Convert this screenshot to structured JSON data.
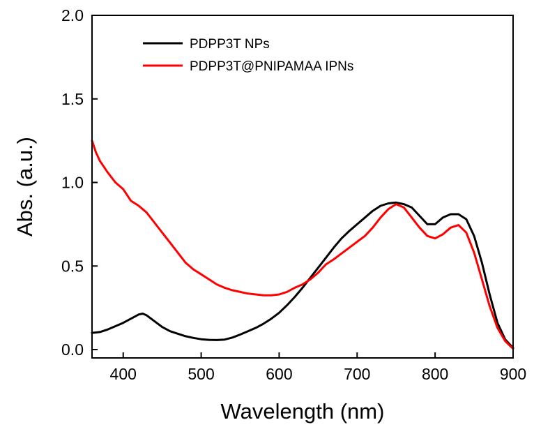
{
  "chart_data": {
    "type": "line",
    "title": "",
    "xlabel": "Wavelength (nm)",
    "ylabel": "Abs. (a.u.)",
    "xlim": [
      360,
      900
    ],
    "ylim": [
      -0.05,
      2.0
    ],
    "xticks": [
      400,
      500,
      600,
      700,
      800,
      900
    ],
    "yticks": [
      0.0,
      0.5,
      1.0,
      1.5,
      2.0
    ],
    "xtick_labels": [
      "400",
      "500",
      "600",
      "700",
      "800",
      "900"
    ],
    "ytick_labels": [
      "0.0",
      "0.5",
      "1.0",
      "1.5",
      "2.0"
    ],
    "grid": false,
    "legend_position": "top-left",
    "series": [
      {
        "name": "PDPP3T NPs",
        "color": "#000000",
        "points": [
          [
            360,
            0.1
          ],
          [
            370,
            0.105
          ],
          [
            380,
            0.12
          ],
          [
            390,
            0.14
          ],
          [
            400,
            0.16
          ],
          [
            410,
            0.185
          ],
          [
            420,
            0.21
          ],
          [
            425,
            0.215
          ],
          [
            430,
            0.205
          ],
          [
            440,
            0.17
          ],
          [
            450,
            0.135
          ],
          [
            460,
            0.11
          ],
          [
            470,
            0.095
          ],
          [
            480,
            0.08
          ],
          [
            490,
            0.07
          ],
          [
            500,
            0.062
          ],
          [
            510,
            0.058
          ],
          [
            520,
            0.057
          ],
          [
            530,
            0.06
          ],
          [
            540,
            0.072
          ],
          [
            550,
            0.09
          ],
          [
            560,
            0.11
          ],
          [
            570,
            0.13
          ],
          [
            580,
            0.155
          ],
          [
            590,
            0.185
          ],
          [
            600,
            0.22
          ],
          [
            610,
            0.265
          ],
          [
            620,
            0.315
          ],
          [
            630,
            0.37
          ],
          [
            640,
            0.43
          ],
          [
            650,
            0.49
          ],
          [
            660,
            0.55
          ],
          [
            670,
            0.61
          ],
          [
            680,
            0.665
          ],
          [
            690,
            0.71
          ],
          [
            700,
            0.75
          ],
          [
            710,
            0.79
          ],
          [
            720,
            0.83
          ],
          [
            730,
            0.86
          ],
          [
            740,
            0.875
          ],
          [
            750,
            0.88
          ],
          [
            760,
            0.87
          ],
          [
            770,
            0.85
          ],
          [
            780,
            0.8
          ],
          [
            790,
            0.75
          ],
          [
            800,
            0.75
          ],
          [
            810,
            0.79
          ],
          [
            820,
            0.81
          ],
          [
            830,
            0.81
          ],
          [
            840,
            0.78
          ],
          [
            850,
            0.68
          ],
          [
            860,
            0.52
          ],
          [
            870,
            0.33
          ],
          [
            880,
            0.16
          ],
          [
            890,
            0.06
          ],
          [
            900,
            0.01
          ]
        ]
      },
      {
        "name": "PDPP3T@PNIPAMAA IPNs",
        "color": "#ff0000",
        "points": [
          [
            360,
            1.25
          ],
          [
            365,
            1.18
          ],
          [
            370,
            1.13
          ],
          [
            380,
            1.06
          ],
          [
            390,
            1.0
          ],
          [
            400,
            0.96
          ],
          [
            410,
            0.89
          ],
          [
            420,
            0.86
          ],
          [
            425,
            0.84
          ],
          [
            430,
            0.82
          ],
          [
            440,
            0.76
          ],
          [
            450,
            0.7
          ],
          [
            460,
            0.64
          ],
          [
            470,
            0.58
          ],
          [
            480,
            0.52
          ],
          [
            490,
            0.48
          ],
          [
            500,
            0.45
          ],
          [
            510,
            0.42
          ],
          [
            520,
            0.39
          ],
          [
            530,
            0.37
          ],
          [
            540,
            0.355
          ],
          [
            550,
            0.345
          ],
          [
            560,
            0.335
          ],
          [
            570,
            0.33
          ],
          [
            580,
            0.325
          ],
          [
            590,
            0.325
          ],
          [
            600,
            0.33
          ],
          [
            610,
            0.345
          ],
          [
            620,
            0.37
          ],
          [
            630,
            0.39
          ],
          [
            640,
            0.42
          ],
          [
            650,
            0.46
          ],
          [
            660,
            0.51
          ],
          [
            670,
            0.54
          ],
          [
            680,
            0.575
          ],
          [
            690,
            0.61
          ],
          [
            700,
            0.645
          ],
          [
            710,
            0.68
          ],
          [
            720,
            0.73
          ],
          [
            730,
            0.79
          ],
          [
            740,
            0.84
          ],
          [
            750,
            0.87
          ],
          [
            760,
            0.85
          ],
          [
            770,
            0.79
          ],
          [
            780,
            0.73
          ],
          [
            790,
            0.68
          ],
          [
            800,
            0.665
          ],
          [
            810,
            0.69
          ],
          [
            820,
            0.73
          ],
          [
            830,
            0.745
          ],
          [
            840,
            0.7
          ],
          [
            850,
            0.58
          ],
          [
            860,
            0.42
          ],
          [
            870,
            0.26
          ],
          [
            880,
            0.13
          ],
          [
            890,
            0.05
          ],
          [
            900,
            0.005
          ]
        ]
      }
    ]
  }
}
